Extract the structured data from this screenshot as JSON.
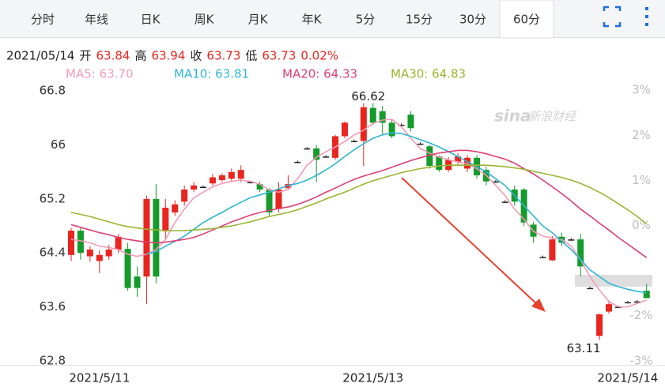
{
  "tabs": [
    {
      "label": "分时"
    },
    {
      "label": "年线"
    },
    {
      "label": "日K"
    },
    {
      "label": "周K"
    },
    {
      "label": "月K"
    },
    {
      "label": "年K"
    },
    {
      "label": "5分"
    },
    {
      "label": "15分"
    },
    {
      "label": "30分"
    },
    {
      "label": "60分",
      "selected": true
    }
  ],
  "quote": {
    "date": "2021/05/14",
    "fields": [
      {
        "name": "开",
        "value": 63.84
      },
      {
        "name": "高",
        "value": 63.94
      },
      {
        "name": "收",
        "value": 63.73
      },
      {
        "name": "低",
        "value": 63.73
      }
    ],
    "change": "0.02%"
  },
  "chart_data": {
    "type": "candlestick",
    "watermark_logo": "sina",
    "watermark": "新浪财经",
    "categories": [
      null,
      null,
      null,
      "2021/5/11",
      null,
      null,
      null,
      null,
      null,
      null,
      null,
      null,
      null,
      null,
      null,
      null,
      null,
      null,
      null,
      null,
      null,
      null,
      null,
      null,
      null,
      null,
      null,
      null,
      null,
      null,
      null,
      null,
      "2021/5/13",
      null,
      null,
      null,
      null,
      null,
      null,
      null,
      null,
      null,
      null,
      null,
      null,
      null,
      null,
      null,
      null,
      null,
      null,
      null,
      null,
      null,
      null,
      null,
      null,
      null,
      null,
      "2021/5/14",
      null,
      null
    ],
    "open": [
      64.37,
      64.73,
      64.35,
      64.28,
      64.35,
      64.45,
      64.46,
      64.05,
      64.05,
      65.2,
      64.72,
      65.0,
      65.16,
      65.34,
      65.38,
      65.43,
      65.48,
      65.5,
      65.5,
      65.45,
      65.42,
      65.34,
      65.05,
      65.36,
      65.75,
      65.95,
      65.95,
      65.83,
      65.81,
      66.13,
      66.06,
      66.06,
      66.55,
      66.5,
      66.33,
      66.3,
      66.45,
      66.02,
      65.98,
      65.83,
      65.63,
      65.75,
      65.65,
      65.81,
      65.63,
      65.46,
      65.16,
      65.34,
      65.34,
      64.82,
      64.34,
      64.29,
      64.64,
      64.6,
      64.6,
      63.88,
      63.17,
      63.53,
      63.6,
      63.67,
      63.68,
      63.84
    ],
    "high": [
      64.77,
      64.77,
      64.5,
      64.44,
      64.52,
      64.68,
      64.55,
      64.2,
      65.25,
      65.42,
      65.2,
      65.18,
      65.4,
      65.45,
      65.4,
      65.57,
      65.58,
      65.65,
      65.7,
      65.47,
      65.46,
      65.36,
      65.45,
      65.55,
      65.77,
      65.97,
      66.0,
      65.85,
      66.15,
      66.35,
      66.08,
      66.62,
      66.62,
      66.58,
      66.37,
      66.32,
      66.5,
      66.04,
      66.0,
      65.85,
      65.82,
      65.88,
      65.85,
      65.85,
      65.68,
      65.48,
      65.18,
      65.4,
      65.36,
      64.86,
      64.36,
      64.65,
      64.7,
      64.62,
      64.68,
      63.9,
      63.5,
      63.7,
      63.62,
      63.69,
      63.7,
      63.94
    ],
    "low": [
      64.28,
      64.3,
      64.27,
      64.1,
      64.3,
      64.4,
      63.84,
      63.75,
      63.64,
      63.95,
      64.6,
      64.95,
      65.1,
      65.3,
      65.36,
      65.4,
      65.45,
      65.45,
      65.45,
      65.43,
      65.3,
      64.95,
      65.0,
      65.33,
      65.73,
      65.93,
      65.45,
      65.81,
      65.78,
      66.1,
      66.04,
      65.69,
      66.3,
      66.15,
      66.1,
      66.28,
      66.2,
      66.0,
      65.65,
      65.6,
      65.6,
      65.7,
      65.6,
      65.5,
      65.4,
      65.44,
      65.14,
      65.1,
      64.8,
      64.55,
      64.32,
      64.28,
      64.5,
      64.58,
      64.05,
      63.86,
      63.11,
      63.5,
      63.58,
      63.65,
      63.66,
      63.73
    ],
    "close": [
      64.73,
      64.4,
      64.45,
      64.37,
      64.45,
      64.64,
      63.88,
      63.88,
      65.2,
      64.05,
      65.07,
      65.12,
      65.34,
      65.4,
      65.38,
      65.52,
      65.55,
      65.6,
      65.63,
      65.45,
      65.34,
      65.0,
      65.34,
      65.42,
      65.75,
      65.95,
      65.78,
      65.83,
      66.13,
      66.33,
      66.06,
      66.56,
      66.33,
      66.33,
      66.13,
      66.3,
      66.25,
      66.02,
      65.69,
      65.63,
      65.78,
      65.83,
      65.81,
      65.55,
      65.46,
      65.46,
      65.16,
      65.16,
      64.85,
      64.64,
      64.34,
      64.6,
      64.55,
      64.6,
      64.2,
      63.88,
      63.49,
      63.64,
      63.6,
      63.67,
      63.68,
      63.73
    ],
    "up_color": "#e8251e",
    "down_color": "#159a2c",
    "flat_color": "#222222",
    "series": [
      {
        "name": "MA5: 63.70",
        "color": "#f49ab6",
        "values": [
          64.6,
          64.58,
          64.55,
          64.5,
          64.48,
          64.45,
          64.38,
          64.35,
          64.38,
          64.45,
          64.6,
          64.85,
          65.05,
          65.22,
          65.3,
          65.38,
          65.43,
          65.46,
          65.48,
          65.46,
          65.42,
          65.33,
          65.3,
          65.34,
          65.5,
          65.7,
          65.82,
          65.9,
          65.97,
          66.05,
          66.15,
          66.22,
          66.32,
          66.37,
          66.38,
          66.27,
          66.1,
          65.95,
          65.88,
          65.82,
          65.78,
          65.75,
          65.72,
          65.65,
          65.55,
          65.4,
          65.25,
          65.05,
          64.9,
          64.72,
          64.65,
          64.62,
          64.6,
          64.5,
          64.3,
          64.05,
          63.85,
          63.68,
          63.6,
          63.6,
          63.65,
          63.7
        ]
      },
      {
        "name": "MA10: 63.81",
        "color": "#2fb6d4",
        "values": [
          null,
          null,
          null,
          null,
          null,
          null,
          null,
          null,
          64.38,
          64.42,
          64.5,
          64.57,
          64.65,
          64.75,
          64.85,
          64.93,
          65.0,
          65.08,
          65.15,
          65.22,
          65.26,
          65.3,
          65.35,
          65.4,
          65.43,
          65.48,
          65.55,
          65.63,
          65.72,
          65.83,
          65.93,
          66.02,
          66.1,
          66.15,
          66.18,
          66.17,
          66.13,
          66.08,
          66.03,
          65.97,
          65.9,
          65.83,
          65.75,
          65.68,
          65.6,
          65.5,
          65.4,
          65.25,
          65.1,
          64.95,
          64.8,
          64.7,
          64.57,
          64.45,
          64.3,
          64.15,
          64.05,
          63.95,
          63.9,
          63.86,
          63.83,
          63.81
        ]
      },
      {
        "name": "MA20: 64.33",
        "color": "#de3f72",
        "values": [
          64.82,
          64.78,
          64.74,
          64.7,
          64.67,
          64.63,
          64.6,
          64.58,
          64.56,
          64.55,
          64.56,
          64.58,
          64.6,
          64.63,
          64.68,
          64.74,
          64.8,
          64.86,
          64.91,
          64.96,
          65.0,
          65.03,
          65.06,
          65.08,
          65.12,
          65.17,
          65.23,
          65.3,
          65.36,
          65.43,
          65.49,
          65.54,
          65.58,
          65.62,
          65.67,
          65.72,
          65.77,
          65.81,
          65.85,
          65.88,
          65.9,
          65.92,
          65.92,
          65.9,
          65.87,
          65.83,
          65.79,
          65.73,
          65.65,
          65.57,
          65.48,
          65.38,
          65.28,
          65.17,
          65.05,
          64.95,
          64.84,
          64.74,
          64.63,
          64.53,
          64.43,
          64.33
        ]
      },
      {
        "name": "MA30: 64.83",
        "color": "#9ab52f",
        "values": [
          65.0,
          64.97,
          64.94,
          64.9,
          64.86,
          64.82,
          64.79,
          64.77,
          64.75,
          64.74,
          64.73,
          64.73,
          64.73,
          64.74,
          64.75,
          64.76,
          64.78,
          64.8,
          64.83,
          64.86,
          64.9,
          64.94,
          64.97,
          65.0,
          65.04,
          65.09,
          65.14,
          65.2,
          65.25,
          65.3,
          65.36,
          65.42,
          65.47,
          65.51,
          65.55,
          65.59,
          65.62,
          65.65,
          65.67,
          65.69,
          65.7,
          65.7,
          65.7,
          65.7,
          65.7,
          65.69,
          65.68,
          65.66,
          65.64,
          65.61,
          65.58,
          65.55,
          65.52,
          65.48,
          65.43,
          65.37,
          65.3,
          65.22,
          65.13,
          65.04,
          64.94,
          64.83
        ]
      }
    ],
    "annotations": {
      "high": 66.62,
      "low": 63.11
    },
    "ylim": [
      62.74,
      66.92
    ],
    "yticks": [
      66.8,
      66,
      65.2,
      64.4,
      63.6,
      62.8
    ],
    "y2lim": [
      -3.09,
      3.16
    ],
    "y2ticks": [
      {
        "value": 3,
        "label": "3%"
      },
      {
        "value": 2,
        "label": "2%"
      },
      {
        "value": 1,
        "label": "1%"
      },
      {
        "value": 0,
        "label": "0%"
      },
      {
        "value": -2,
        "label": "-2%"
      },
      {
        "value": -3,
        "label": "-3%"
      }
    ],
    "grid": false
  }
}
